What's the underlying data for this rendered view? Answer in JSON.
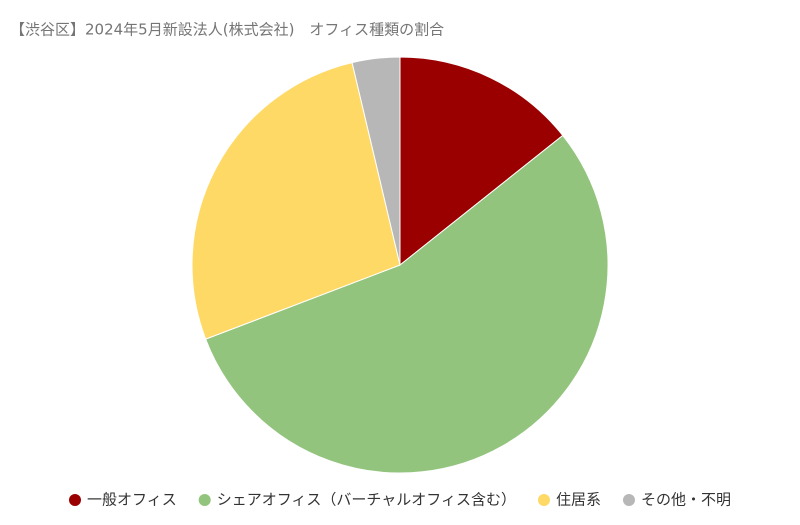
{
  "chart_data": {
    "type": "pie",
    "title": "【渋谷区】2024年5月新設法人(株式会社)　オフィス種類の割合",
    "categories": [
      "一般オフィス",
      "シェアオフィス（バーチャルオフィス含む）",
      "住居系",
      "その他・不明"
    ],
    "values": [
      14.3,
      54.9,
      27.1,
      3.7
    ],
    "colors": [
      "#9a0000",
      "#93c47d",
      "#ffd966",
      "#b7b7b7"
    ],
    "legend": "bottom"
  }
}
